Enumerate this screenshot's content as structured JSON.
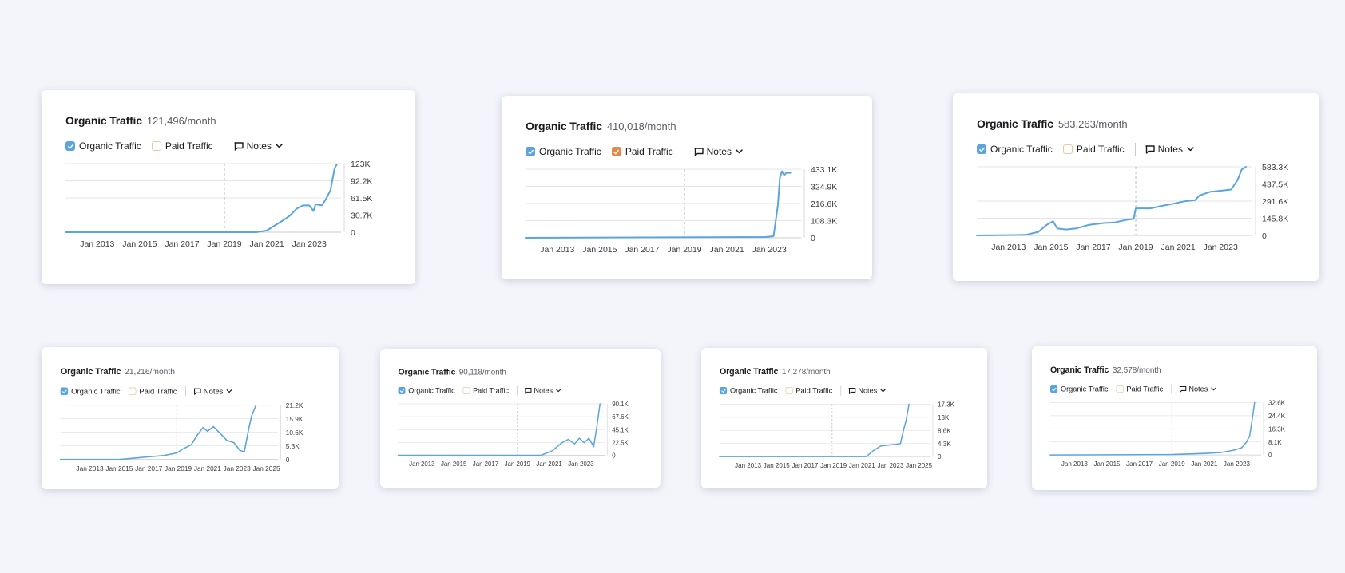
{
  "colors": {
    "background": "#f4f4fb",
    "organic_blue": "#5aa5dd",
    "paid_orange": "#e8874a",
    "paid_outline": "#e8c9a5",
    "grid": "#e4e4ea",
    "text": "#1b1b1f",
    "muted": "#5a5a66"
  },
  "labels": {
    "title": "Organic Traffic",
    "organic_toggle": "Organic Traffic",
    "paid_toggle": "Paid Traffic",
    "notes_button": "Notes"
  },
  "icons": {
    "checkbox": "check-icon",
    "notes": "speech-bubble-icon",
    "dropdown": "chevron-down-icon"
  },
  "chart_data": [
    {
      "type": "line",
      "headline": "121,496/month",
      "paid_checked": false,
      "x_ticks": [
        "Jan 2013",
        "Jan 2015",
        "Jan 2017",
        "Jan 2019",
        "Jan 2021",
        "Jan 2023"
      ],
      "xlim": [
        2011.5,
        2024.5
      ],
      "y_ticks": [
        "123K",
        "92.2K",
        "61.5K",
        "30.7K",
        "0"
      ],
      "ylim": [
        0,
        123000
      ],
      "marker_x": 2019.0,
      "series": [
        {
          "values": [
            [
              2011.5,
              0
            ],
            [
              2020.5,
              0
            ],
            [
              2021.0,
              3000
            ],
            [
              2021.5,
              15000
            ],
            [
              2021.8,
              22000
            ],
            [
              2022.1,
              30000
            ],
            [
              2022.4,
              42000
            ],
            [
              2022.7,
              48000
            ],
            [
              2023.0,
              48000
            ],
            [
              2023.2,
              38000
            ],
            [
              2023.3,
              50000
            ],
            [
              2023.6,
              48000
            ],
            [
              2023.8,
              60000
            ],
            [
              2024.0,
              75000
            ],
            [
              2024.2,
              115000
            ],
            [
              2024.3,
              121496
            ]
          ]
        }
      ]
    },
    {
      "type": "line",
      "headline": "410,018/month",
      "paid_checked": true,
      "x_ticks": [
        "Jan 2013",
        "Jan 2015",
        "Jan 2017",
        "Jan 2019",
        "Jan 2021",
        "Jan 2023"
      ],
      "xlim": [
        2011.5,
        2024.5
      ],
      "y_ticks": [
        "433.1K",
        "324.9K",
        "216.6K",
        "108.3K",
        "0"
      ],
      "ylim": [
        0,
        433100
      ],
      "marker_x": 2019.0,
      "series": [
        {
          "values": [
            [
              2011.5,
              0
            ],
            [
              2022.8,
              5000
            ],
            [
              2023.2,
              10000
            ],
            [
              2023.4,
              200000
            ],
            [
              2023.5,
              380000
            ],
            [
              2023.6,
              420000
            ],
            [
              2023.7,
              395000
            ],
            [
              2023.8,
              410000
            ],
            [
              2024.0,
              410018
            ]
          ]
        }
      ]
    },
    {
      "type": "line",
      "headline": "583,263/month",
      "paid_checked": false,
      "x_ticks": [
        "Jan 2013",
        "Jan 2015",
        "Jan 2017",
        "Jan 2019",
        "Jan 2021",
        "Jan 2023"
      ],
      "xlim": [
        2011.5,
        2024.5
      ],
      "y_ticks": [
        "583.3K",
        "437.5K",
        "291.6K",
        "145.8K",
        "0"
      ],
      "ylim": [
        0,
        583300
      ],
      "marker_x": 2019.0,
      "series": [
        {
          "values": [
            [
              2011.5,
              0
            ],
            [
              2013.8,
              5000
            ],
            [
              2014.4,
              30000
            ],
            [
              2014.8,
              90000
            ],
            [
              2015.1,
              120000
            ],
            [
              2015.3,
              60000
            ],
            [
              2015.7,
              50000
            ],
            [
              2016.2,
              60000
            ],
            [
              2016.8,
              90000
            ],
            [
              2017.5,
              105000
            ],
            [
              2018.0,
              110000
            ],
            [
              2018.5,
              130000
            ],
            [
              2018.9,
              140000
            ],
            [
              2019.0,
              230000
            ],
            [
              2019.3,
              230000
            ],
            [
              2019.7,
              230000
            ],
            [
              2020.2,
              250000
            ],
            [
              2020.8,
              270000
            ],
            [
              2021.3,
              290000
            ],
            [
              2021.8,
              300000
            ],
            [
              2022.0,
              340000
            ],
            [
              2022.5,
              370000
            ],
            [
              2023.0,
              380000
            ],
            [
              2023.5,
              390000
            ],
            [
              2023.8,
              470000
            ],
            [
              2024.0,
              560000
            ],
            [
              2024.2,
              583263
            ]
          ]
        }
      ]
    },
    {
      "type": "line",
      "headline": "21,216/month",
      "paid_checked": false,
      "x_ticks": [
        "Jan 2013",
        "Jan 2015",
        "Jan 2017",
        "Jan 2019",
        "Jan 2021",
        "Jan 2023",
        "Jan 2025"
      ],
      "xlim": [
        2011.0,
        2025.8
      ],
      "y_ticks": [
        "21.2K",
        "15.9K",
        "10.6K",
        "5.3K",
        "0"
      ],
      "ylim": [
        0,
        21200
      ],
      "marker_x": 2018.9,
      "series": [
        {
          "values": [
            [
              2011.0,
              0
            ],
            [
              2015.0,
              0
            ],
            [
              2016.0,
              500
            ],
            [
              2017.0,
              1000
            ],
            [
              2018.0,
              1500
            ],
            [
              2018.9,
              2500
            ],
            [
              2019.3,
              4000
            ],
            [
              2019.9,
              5800
            ],
            [
              2020.3,
              9500
            ],
            [
              2020.7,
              12500
            ],
            [
              2021.0,
              11000
            ],
            [
              2021.4,
              12800
            ],
            [
              2021.8,
              10500
            ],
            [
              2022.3,
              7500
            ],
            [
              2022.8,
              6500
            ],
            [
              2023.2,
              3500
            ],
            [
              2023.5,
              3000
            ],
            [
              2023.8,
              12000
            ],
            [
              2024.0,
              17000
            ],
            [
              2024.3,
              21216
            ]
          ]
        }
      ]
    },
    {
      "type": "line",
      "headline": "90,118/month",
      "paid_checked": false,
      "x_ticks": [
        "Jan 2013",
        "Jan 2015",
        "Jan 2017",
        "Jan 2019",
        "Jan 2021",
        "Jan 2023"
      ],
      "xlim": [
        2011.5,
        2024.5
      ],
      "y_ticks": [
        "90.1K",
        "67.6K",
        "45.1K",
        "22.5K",
        "0"
      ],
      "ylim": [
        0,
        90100
      ],
      "marker_x": 2019.0,
      "series": [
        {
          "values": [
            [
              2011.5,
              0
            ],
            [
              2020.5,
              0
            ],
            [
              2021.2,
              8000
            ],
            [
              2021.8,
              22000
            ],
            [
              2022.2,
              28000
            ],
            [
              2022.6,
              20000
            ],
            [
              2022.9,
              30000
            ],
            [
              2023.2,
              22000
            ],
            [
              2023.5,
              30000
            ],
            [
              2023.8,
              15000
            ],
            [
              2024.0,
              50000
            ],
            [
              2024.2,
              90118
            ]
          ]
        }
      ]
    },
    {
      "type": "line",
      "headline": "17,278/month",
      "paid_checked": false,
      "x_ticks": [
        "Jan 2013",
        "Jan 2015",
        "Jan 2017",
        "Jan 2019",
        "Jan 2021",
        "Jan 2023",
        "Jan 2025"
      ],
      "xlim": [
        2011.0,
        2025.8
      ],
      "y_ticks": [
        "17.3K",
        "13K",
        "8.6K",
        "4.3K",
        "0"
      ],
      "ylim": [
        0,
        17300
      ],
      "marker_x": 2018.9,
      "series": [
        {
          "values": [
            [
              2011.0,
              0
            ],
            [
              2021.3,
              0
            ],
            [
              2021.8,
              2000
            ],
            [
              2022.3,
              3500
            ],
            [
              2022.8,
              3800
            ],
            [
              2023.3,
              4000
            ],
            [
              2023.7,
              4300
            ],
            [
              2023.9,
              8500
            ],
            [
              2024.1,
              12000
            ],
            [
              2024.3,
              17278
            ]
          ]
        }
      ]
    },
    {
      "type": "line",
      "headline": "32,578/month",
      "paid_checked": false,
      "x_ticks": [
        "Jan 2013",
        "Jan 2015",
        "Jan 2017",
        "Jan 2019",
        "Jan 2021",
        "Jan 2023"
      ],
      "xlim": [
        2011.5,
        2024.5
      ],
      "y_ticks": [
        "32.6K",
        "24.4K",
        "16.3K",
        "8.1K",
        "0"
      ],
      "ylim": [
        0,
        32600
      ],
      "marker_x": 2019.0,
      "series": [
        {
          "values": [
            [
              2011.5,
              0
            ],
            [
              2019.0,
              300
            ],
            [
              2021.0,
              1000
            ],
            [
              2022.0,
              1500
            ],
            [
              2022.8,
              3000
            ],
            [
              2023.3,
              4500
            ],
            [
              2023.6,
              8000
            ],
            [
              2023.8,
              12000
            ],
            [
              2024.0,
              25000
            ],
            [
              2024.1,
              32578
            ]
          ]
        }
      ]
    }
  ]
}
